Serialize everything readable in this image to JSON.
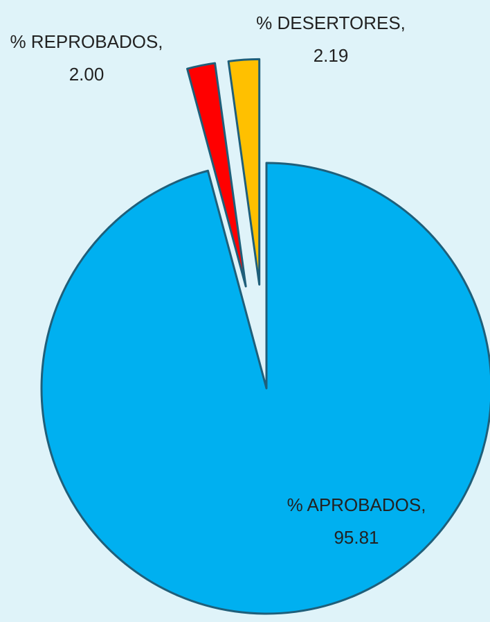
{
  "chart_data": {
    "type": "pie",
    "categories": [
      "% APROBADOS,",
      "% REPROBADOS,",
      "% DESERTORES,"
    ],
    "values": [
      95.81,
      2.0,
      2.19
    ],
    "value_labels": [
      "95.81",
      "2.00",
      "2.19"
    ],
    "colors": [
      "#00b0f0",
      "#ff0000",
      "#ffc000"
    ]
  }
}
